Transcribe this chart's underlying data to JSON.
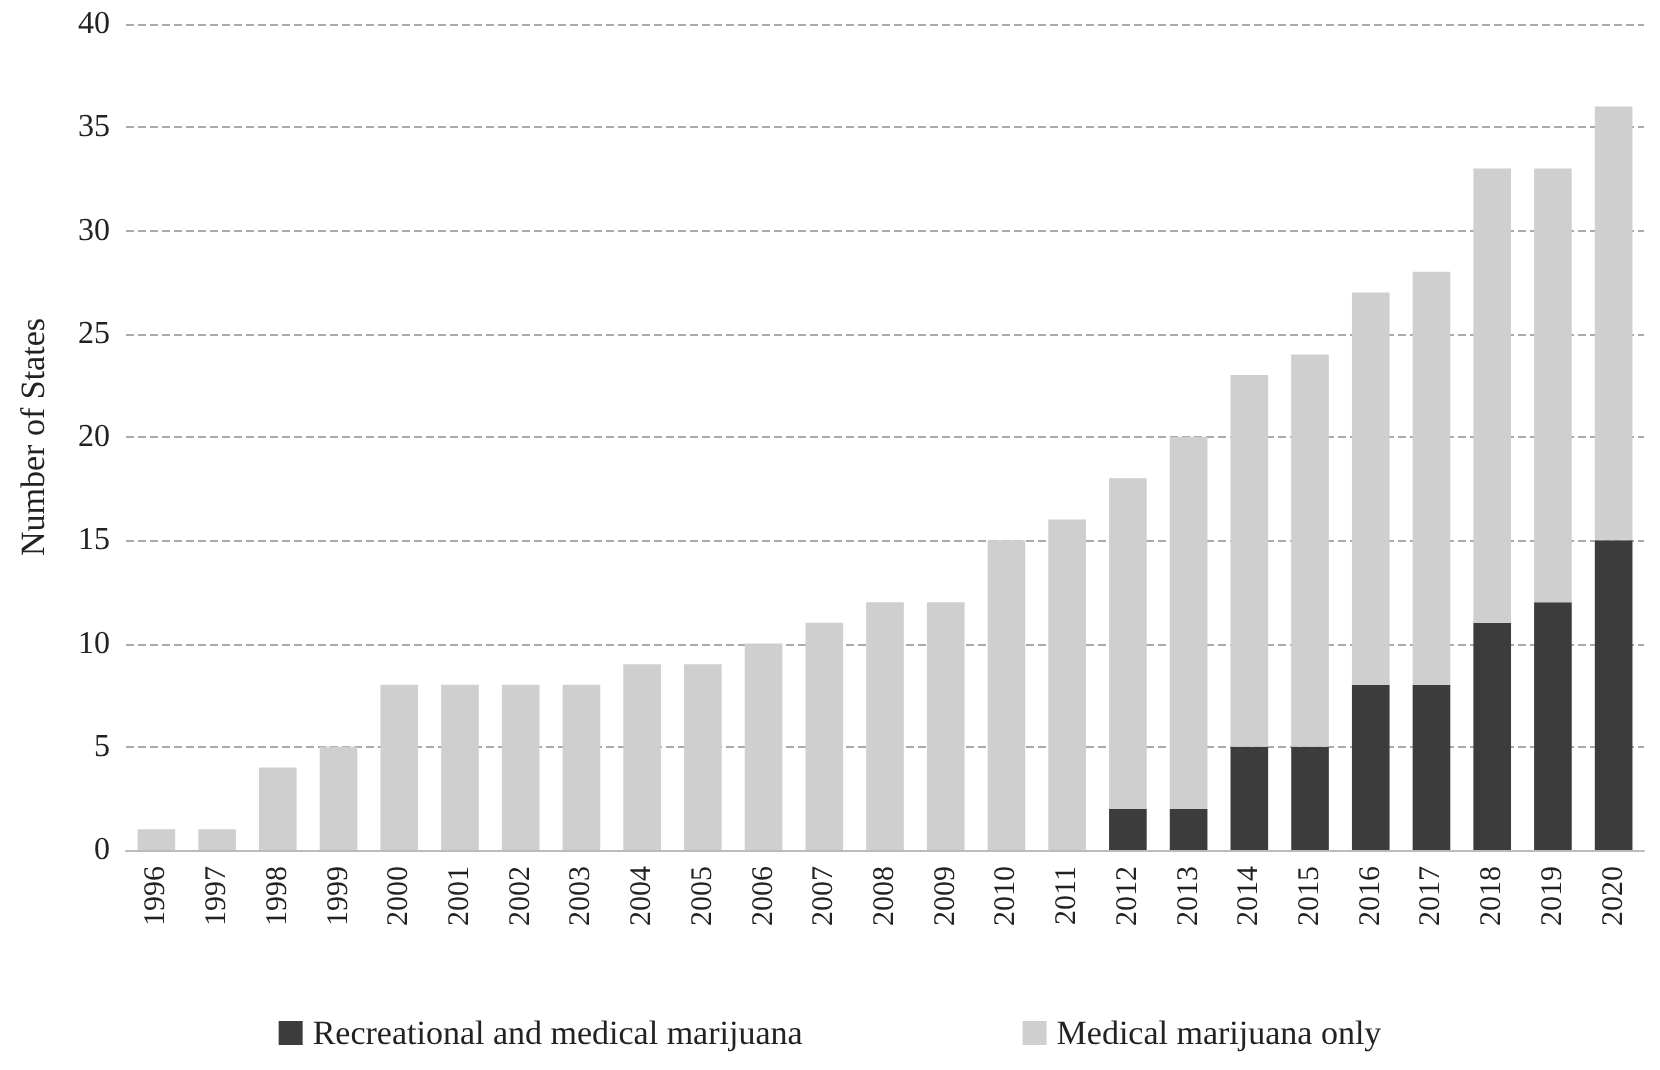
{
  "chart_data": {
    "type": "bar",
    "ylabel": "Number of States",
    "categories": [
      "1996",
      "1997",
      "1998",
      "1999",
      "2000",
      "2001",
      "2002",
      "2003",
      "2004",
      "2005",
      "2006",
      "2007",
      "2008",
      "2009",
      "2010",
      "2011",
      "2012",
      "2013",
      "2014",
      "2015",
      "2016",
      "2017",
      "2018",
      "2019",
      "2020"
    ],
    "series": [
      {
        "name": "Recreational and medical marijuana",
        "color": "#3c3c3c",
        "values": [
          0,
          0,
          0,
          0,
          0,
          0,
          0,
          0,
          0,
          0,
          0,
          0,
          0,
          0,
          0,
          0,
          2,
          2,
          5,
          5,
          8,
          8,
          11,
          12,
          15
        ]
      },
      {
        "name": "Medical marijuana only",
        "color": "#cfcfcf",
        "values": [
          1,
          1,
          4,
          5,
          8,
          8,
          8,
          8,
          9,
          9,
          10,
          11,
          12,
          12,
          15,
          16,
          16,
          18,
          18,
          19,
          19,
          20,
          22,
          21,
          21
        ]
      }
    ],
    "stacked": true,
    "ylim": [
      0,
      40
    ],
    "yticks": [
      0,
      5,
      10,
      15,
      20,
      25,
      30,
      35,
      40
    ],
    "grid": "y",
    "legend": "bottom"
  }
}
